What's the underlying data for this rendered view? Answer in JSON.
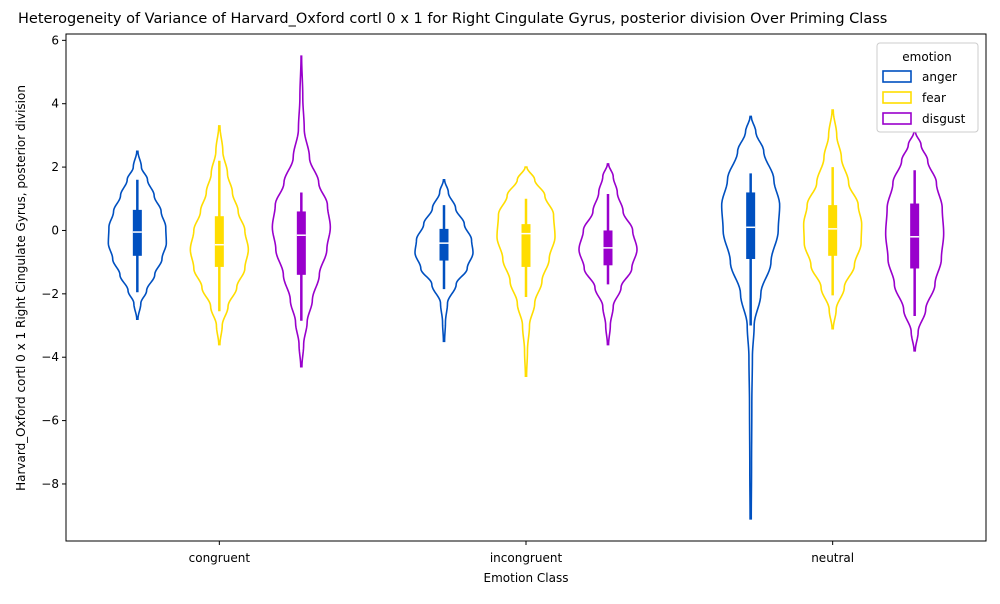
{
  "chart_data": {
    "type": "violin",
    "title": "Heterogeneity of Variance of Harvard_Oxford cortl 0 x 1 for Right Cingulate Gyrus, posterior division Over Priming Class",
    "xlabel": "Emotion Class",
    "ylabel": "Harvard_Oxford cortl 0 x 1 Right Cingulate Gyrus, posterior division",
    "categories": [
      "congruent",
      "incongruent",
      "neutral"
    ],
    "ylim": [
      -9.8,
      6.2
    ],
    "yticks": [
      -8,
      -6,
      -4,
      -2,
      0,
      2,
      4,
      6
    ],
    "ytick_labels": [
      "−8",
      "−6",
      "−4",
      "−2",
      "0",
      "2",
      "4",
      "6"
    ],
    "grid": false,
    "legend": {
      "title": "emotion",
      "position": "top-right",
      "entries": [
        "anger",
        "fear",
        "disgust"
      ]
    },
    "series": [
      {
        "name": "anger",
        "color": "#0050c0",
        "groups": [
          {
            "min": -2.8,
            "max": 2.5,
            "q1": -0.8,
            "median": -0.05,
            "q3": 0.65,
            "whisker_low": -1.95,
            "whisker_high": 1.6,
            "profile": [
              [
                -2.8,
                0.02
              ],
              [
                -2.3,
                0.12
              ],
              [
                -1.9,
                0.32
              ],
              [
                -1.4,
                0.6
              ],
              [
                -0.9,
                0.85
              ],
              [
                -0.4,
                1.0
              ],
              [
                0.1,
                0.98
              ],
              [
                0.6,
                0.82
              ],
              [
                1.1,
                0.58
              ],
              [
                1.6,
                0.35
              ],
              [
                2.0,
                0.14
              ],
              [
                2.5,
                0.02
              ]
            ]
          },
          {
            "min": -3.5,
            "max": 1.6,
            "q1": -0.95,
            "median": -0.4,
            "q3": 0.05,
            "whisker_low": -1.85,
            "whisker_high": 0.8,
            "profile": [
              [
                -3.5,
                0.02
              ],
              [
                -2.9,
                0.05
              ],
              [
                -2.3,
                0.12
              ],
              [
                -1.7,
                0.42
              ],
              [
                -1.2,
                0.8
              ],
              [
                -0.7,
                1.0
              ],
              [
                -0.3,
                0.95
              ],
              [
                0.2,
                0.7
              ],
              [
                0.7,
                0.4
              ],
              [
                1.2,
                0.15
              ],
              [
                1.6,
                0.02
              ]
            ]
          },
          {
            "min": -9.1,
            "max": 3.6,
            "q1": -0.9,
            "median": 0.1,
            "q3": 1.2,
            "whisker_low": -3.0,
            "whisker_high": 1.8,
            "profile": [
              [
                -9.1,
                0.02
              ],
              [
                -7.5,
                0.03
              ],
              [
                -5.5,
                0.04
              ],
              [
                -4.0,
                0.06
              ],
              [
                -3.0,
                0.12
              ],
              [
                -2.0,
                0.35
              ],
              [
                -1.0,
                0.7
              ],
              [
                0.0,
                0.95
              ],
              [
                0.8,
                1.0
              ],
              [
                1.6,
                0.8
              ],
              [
                2.5,
                0.45
              ],
              [
                3.1,
                0.18
              ],
              [
                3.6,
                0.02
              ]
            ]
          }
        ]
      },
      {
        "name": "fear",
        "color": "#ffdd00",
        "groups": [
          {
            "min": -3.6,
            "max": 3.3,
            "q1": -1.15,
            "median": -0.45,
            "q3": 0.45,
            "whisker_low": -2.55,
            "whisker_high": 2.2,
            "profile": [
              [
                -3.6,
                0.02
              ],
              [
                -3.0,
                0.1
              ],
              [
                -2.4,
                0.3
              ],
              [
                -1.8,
                0.6
              ],
              [
                -1.2,
                0.88
              ],
              [
                -0.6,
                1.0
              ],
              [
                0.0,
                0.88
              ],
              [
                0.6,
                0.65
              ],
              [
                1.2,
                0.45
              ],
              [
                1.8,
                0.28
              ],
              [
                2.5,
                0.12
              ],
              [
                3.3,
                0.02
              ]
            ]
          },
          {
            "min": -4.6,
            "max": 2.0,
            "q1": -1.15,
            "median": -0.1,
            "q3": 0.2,
            "whisker_low": -2.1,
            "whisker_high": 1.0,
            "profile": [
              [
                -4.6,
                0.02
              ],
              [
                -3.8,
                0.05
              ],
              [
                -3.0,
                0.12
              ],
              [
                -2.3,
                0.3
              ],
              [
                -1.6,
                0.55
              ],
              [
                -0.9,
                0.8
              ],
              [
                -0.2,
                1.0
              ],
              [
                0.5,
                0.95
              ],
              [
                1.1,
                0.65
              ],
              [
                1.6,
                0.3
              ],
              [
                2.0,
                0.03
              ]
            ]
          },
          {
            "min": -3.1,
            "max": 3.8,
            "q1": -0.8,
            "median": 0.05,
            "q3": 0.8,
            "whisker_low": -2.05,
            "whisker_high": 2.0,
            "profile": [
              [
                -3.1,
                0.02
              ],
              [
                -2.5,
                0.12
              ],
              [
                -1.8,
                0.4
              ],
              [
                -1.1,
                0.75
              ],
              [
                -0.4,
                0.98
              ],
              [
                0.2,
                1.0
              ],
              [
                0.8,
                0.88
              ],
              [
                1.5,
                0.55
              ],
              [
                2.3,
                0.3
              ],
              [
                3.0,
                0.14
              ],
              [
                3.8,
                0.02
              ]
            ]
          }
        ]
      },
      {
        "name": "disgust",
        "color": "#9900cc",
        "groups": [
          {
            "min": -4.3,
            "max": 5.5,
            "q1": -1.4,
            "median": -0.15,
            "q3": 0.6,
            "whisker_low": -2.85,
            "whisker_high": 1.2,
            "profile": [
              [
                -4.3,
                0.02
              ],
              [
                -3.6,
                0.08
              ],
              [
                -2.9,
                0.2
              ],
              [
                -2.2,
                0.38
              ],
              [
                -1.4,
                0.62
              ],
              [
                -0.6,
                0.88
              ],
              [
                0.1,
                1.0
              ],
              [
                0.8,
                0.9
              ],
              [
                1.5,
                0.6
              ],
              [
                2.3,
                0.28
              ],
              [
                3.2,
                0.1
              ],
              [
                4.2,
                0.05
              ],
              [
                5.5,
                0.01
              ]
            ]
          },
          {
            "min": -3.6,
            "max": 2.1,
            "q1": -1.1,
            "median": -0.55,
            "q3": 0.0,
            "whisker_low": -1.7,
            "whisker_high": 1.15,
            "profile": [
              [
                -3.6,
                0.02
              ],
              [
                -3.0,
                0.08
              ],
              [
                -2.4,
                0.18
              ],
              [
                -1.8,
                0.45
              ],
              [
                -1.2,
                0.82
              ],
              [
                -0.6,
                1.0
              ],
              [
                0.0,
                0.85
              ],
              [
                0.6,
                0.52
              ],
              [
                1.2,
                0.32
              ],
              [
                1.7,
                0.18
              ],
              [
                2.1,
                0.02
              ]
            ]
          },
          {
            "min": -3.8,
            "max": 3.1,
            "q1": -1.2,
            "median": -0.2,
            "q3": 0.85,
            "whisker_low": -2.7,
            "whisker_high": 1.9,
            "profile": [
              [
                -3.8,
                0.02
              ],
              [
                -3.2,
                0.12
              ],
              [
                -2.5,
                0.38
              ],
              [
                -1.7,
                0.7
              ],
              [
                -0.9,
                0.92
              ],
              [
                -0.1,
                1.0
              ],
              [
                0.7,
                0.95
              ],
              [
                1.5,
                0.75
              ],
              [
                2.2,
                0.45
              ],
              [
                2.7,
                0.22
              ],
              [
                3.1,
                0.03
              ]
            ]
          }
        ]
      }
    ]
  }
}
